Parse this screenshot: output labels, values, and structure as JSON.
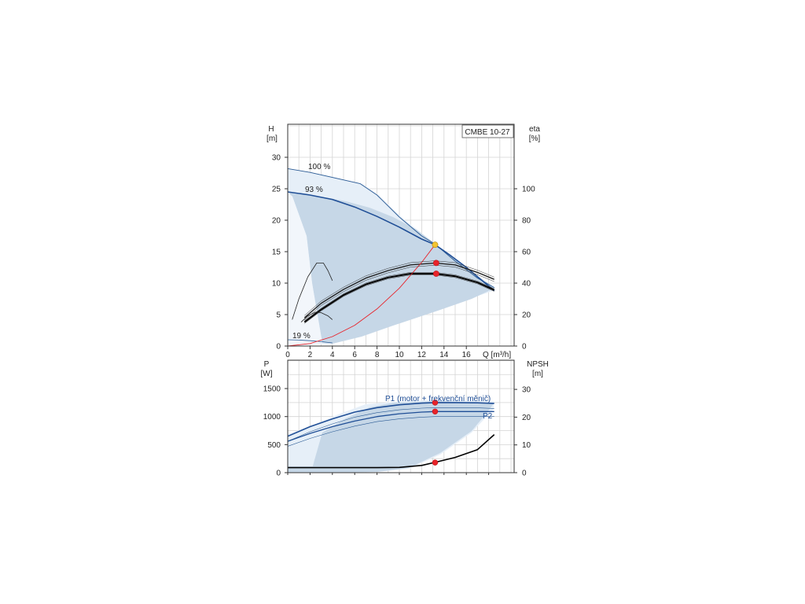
{
  "chart_data": [
    {
      "type": "line",
      "model": "CMBE 10-27",
      "xlabel": "Q [m³/h]",
      "ylabel_left": {
        "name": "H",
        "unit": "[m]"
      },
      "ylabel_right": {
        "name": "eta",
        "unit": "[%]"
      },
      "xlim": [
        0,
        20
      ],
      "ylim": [
        0,
        35
      ],
      "y2lim": [
        0,
        140
      ],
      "x_ticks": [
        "0",
        "2",
        "4",
        "6",
        "8",
        "10",
        "12",
        "14",
        "16"
      ],
      "y_ticks": [
        "0",
        "5",
        "10",
        "15",
        "20",
        "25",
        "30"
      ],
      "y2_ticks": [
        "0",
        "20",
        "40",
        "60",
        "80",
        "100"
      ],
      "grid": true,
      "speed_labels": [
        "100 %",
        "93 %",
        "19 %"
      ],
      "series": [
        {
          "name": "100 %",
          "x": [
            0,
            2,
            4,
            6.5,
            8,
            10,
            12,
            13.2,
            15,
            17,
            18.5
          ],
          "y": [
            28.2,
            27.6,
            26.8,
            25.8,
            24,
            20.5,
            17.5,
            16.2,
            13.5,
            10.8,
            9.3
          ]
        },
        {
          "name": "93 %",
          "x": [
            0,
            2,
            4,
            6,
            8,
            10,
            12,
            13.2,
            14.5,
            16,
            18.5
          ],
          "y": [
            24.5,
            24,
            23.3,
            22.1,
            20.6,
            18.9,
            17,
            16.1,
            14.5,
            12.5,
            8.8
          ]
        },
        {
          "name": "19 %",
          "x": [
            0,
            1,
            2,
            3,
            4
          ],
          "y": [
            1,
            0.95,
            0.85,
            0.7,
            0.5
          ]
        },
        {
          "name": "eta-100",
          "x": [
            1.5,
            3,
            5,
            7,
            9,
            11,
            13.2,
            15,
            17,
            18.5
          ],
          "y": [
            4.5,
            6.8,
            9,
            10.8,
            12,
            12.9,
            13.2,
            12.9,
            11.7,
            10.6
          ]
        },
        {
          "name": "eta-93",
          "x": [
            1.5,
            3,
            5,
            7,
            9,
            11,
            13.2,
            15,
            17,
            18.5
          ],
          "y": [
            3.8,
            5.8,
            8.1,
            9.8,
            10.9,
            11.5,
            11.5,
            11.1,
            10.1,
            8.9
          ]
        },
        {
          "name": "eta-19-a",
          "x": [
            0.4,
            1,
            1.8,
            2.6,
            3.2,
            3.6,
            4
          ],
          "y": [
            4.2,
            7.5,
            11,
            13.2,
            13.2,
            12,
            10.4
          ]
        },
        {
          "name": "eta-19-b",
          "x": [
            1.2,
            1.8,
            2.5,
            3,
            3.6,
            4
          ],
          "y": [
            3.8,
            4.8,
            5.4,
            5.3,
            4.8,
            4.2
          ]
        },
        {
          "name": "system",
          "x": [
            0,
            2,
            4,
            6,
            8,
            10,
            12,
            13.2
          ],
          "y": [
            0,
            0.4,
            1.5,
            3.3,
            5.9,
            9.2,
            13.3,
            16.1
          ]
        }
      ],
      "duty_points": [
        {
          "x": 13.2,
          "y": 16.1,
          "color": "#f4c430"
        },
        {
          "x": 13.3,
          "y": 13.2,
          "color": "#e8232a"
        },
        {
          "x": 13.3,
          "y": 11.5,
          "color": "#e8232a"
        }
      ]
    },
    {
      "type": "line",
      "xlabel": "",
      "ylabel_left": {
        "name": "P",
        "unit": "[W]"
      },
      "ylabel_right": {
        "name": "NPSH",
        "unit": "[m]"
      },
      "xlim": [
        0,
        20
      ],
      "ylim": [
        0,
        2000
      ],
      "y2lim": [
        0,
        40
      ],
      "y_ticks": [
        "0",
        "500",
        "1000",
        "1500"
      ],
      "y2_ticks": [
        "0",
        "10",
        "20",
        "30"
      ],
      "grid": true,
      "series_labels": [
        "P1 (motor + frekvenční měnič)",
        "P2"
      ],
      "series": [
        {
          "name": "P1 (motor + frekvenční měnič)",
          "x": [
            0,
            2,
            4,
            6,
            8,
            10,
            12,
            13.2,
            15,
            17,
            18.5
          ],
          "y": [
            650,
            820,
            960,
            1080,
            1160,
            1210,
            1240,
            1250,
            1250,
            1245,
            1235
          ]
        },
        {
          "name": "P2",
          "x": [
            0,
            2,
            4,
            6,
            8,
            10,
            12,
            13.2,
            15,
            17,
            18.5
          ],
          "y": [
            560,
            700,
            820,
            920,
            1000,
            1050,
            1080,
            1090,
            1090,
            1090,
            1090
          ]
        },
        {
          "name": "NPSH",
          "x": [
            0,
            2,
            4,
            6,
            8,
            10,
            12,
            13.2,
            15,
            17,
            18.5
          ],
          "y": [
            1.8,
            1.8,
            1.8,
            1.8,
            1.8,
            1.9,
            2.6,
            3.7,
            5.5,
            8.3,
            13.7
          ]
        }
      ],
      "duty_points": [
        {
          "x": 13.2,
          "y": 1250,
          "color": "#e8232a"
        },
        {
          "x": 13.2,
          "y": 1090,
          "color": "#e8232a"
        },
        {
          "x": 13.2,
          "y": 180,
          "color": "#e8232a"
        }
      ]
    }
  ]
}
